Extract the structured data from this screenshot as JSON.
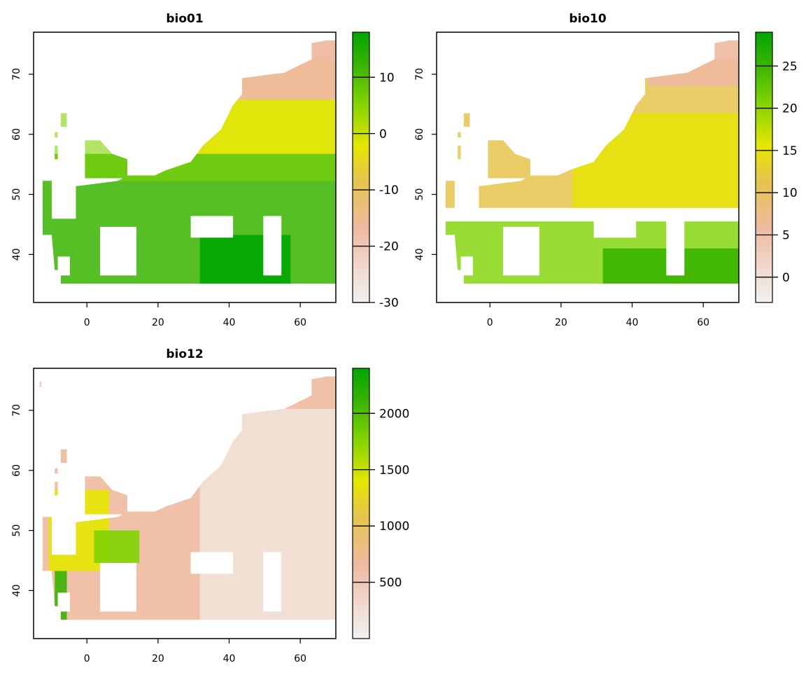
{
  "panels": [
    {
      "title": "bio01",
      "x_ticks": [
        "0",
        "20",
        "40",
        "60"
      ],
      "y_ticks": [
        "40",
        "50",
        "60",
        "70"
      ],
      "legend": {
        "ticks": [
          "-30",
          "-20",
          "-10",
          "0",
          "10"
        ],
        "tick_values": [
          -30,
          -20,
          -10,
          0,
          10
        ],
        "range": [
          -30,
          18
        ]
      }
    },
    {
      "title": "bio10",
      "x_ticks": [
        "0",
        "20",
        "40",
        "60"
      ],
      "y_ticks": [
        "40",
        "50",
        "60",
        "70"
      ],
      "legend": {
        "ticks": [
          "0",
          "5",
          "10",
          "15",
          "20",
          "25"
        ],
        "tick_values": [
          0,
          5,
          10,
          15,
          20,
          25
        ],
        "range": [
          -3,
          29
        ]
      }
    },
    {
      "title": "bio12",
      "x_ticks": [
        "0",
        "20",
        "40",
        "60"
      ],
      "y_ticks": [
        "40",
        "50",
        "60",
        "70"
      ],
      "legend": {
        "ticks": [
          "500",
          "1000",
          "1500",
          "2000"
        ],
        "tick_values": [
          500,
          1000,
          1500,
          2000
        ],
        "range": [
          0,
          2400
        ]
      }
    }
  ],
  "colors": {
    "palette": [
      "#f2f2f2",
      "#eeb99f",
      "#e6c44c",
      "#e6e600",
      "#7fd300",
      "#38b400",
      "#00a600"
    ],
    "frame": "#000000",
    "background": "#ffffff"
  }
}
